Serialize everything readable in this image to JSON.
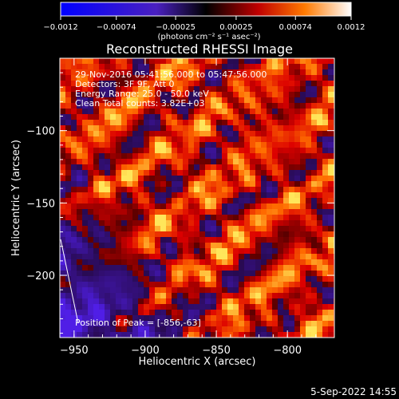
{
  "colorbar": {
    "ticks": [
      "-0.0012",
      "-0.00074",
      "-0.00025",
      "0.00025",
      "0.00074",
      "0.0012"
    ],
    "unit_text": "(photons cm⁻² s⁻¹ asec⁻²)",
    "range": [
      -0.0012,
      0.0012
    ]
  },
  "chart_data": {
    "type": "heatmap",
    "title": "Reconstructed RHESSI Image",
    "xlabel": "Heliocentric X (arcsec)",
    "ylabel": "Heliocentric Y (arcsec)",
    "xlim": [
      -960,
      -767
    ],
    "ylim": [
      -243,
      -50
    ],
    "x_ticks": [
      -950,
      -900,
      -850,
      -800
    ],
    "x_tick_labels": [
      "−950",
      "−900",
      "−850",
      "−800"
    ],
    "y_ticks": [
      -100,
      -150,
      -200
    ],
    "y_tick_labels": [
      "−100",
      "−150",
      "−200"
    ],
    "colormap": "red-temperature with blue negatives",
    "annotations": [
      "29-Nov-2016 05:41:56.000 to 05:47:56.000",
      "Detectors: 3F 9F, Att 0",
      "Energy Range: 25.0 - 50.0 keV",
      "Clean    Total counts: 3.82E+03"
    ],
    "peak_label": "Position of Peak = [-856,-63]",
    "peak": {
      "x": -856,
      "y": -63
    },
    "limb_line": true
  },
  "footer": {
    "timestamp": "5-Sep-2022 14:55"
  }
}
